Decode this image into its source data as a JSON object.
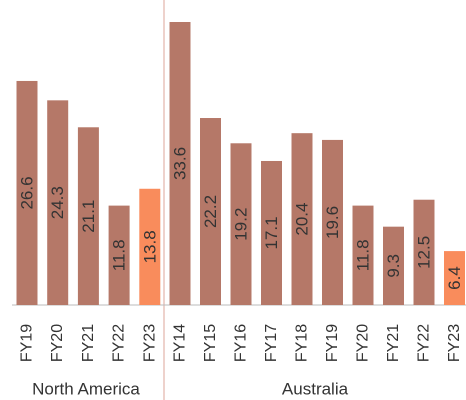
{
  "chart_data": {
    "type": "bar",
    "groups": [
      {
        "name": "North America",
        "categories": [
          "FY19",
          "FY20",
          "FY21",
          "FY22",
          "FY23"
        ],
        "values": [
          26.6,
          24.3,
          21.1,
          11.8,
          13.8
        ],
        "colors": [
          "#b57868",
          "#b57868",
          "#b57868",
          "#b57868",
          "#f98c5c"
        ]
      },
      {
        "name": "Australia",
        "categories": [
          "FY14",
          "FY15",
          "FY16",
          "FY17",
          "FY18",
          "FY19",
          "FY20",
          "FY21",
          "FY22",
          "FY23"
        ],
        "values": [
          33.6,
          22.2,
          19.2,
          17.1,
          20.4,
          19.6,
          11.8,
          9.3,
          12.5,
          6.4
        ],
        "colors": [
          "#b57868",
          "#b57868",
          "#b57868",
          "#b57868",
          "#b57868",
          "#b57868",
          "#b57868",
          "#b57868",
          "#b57868",
          "#f98c5c"
        ]
      }
    ]
  }
}
